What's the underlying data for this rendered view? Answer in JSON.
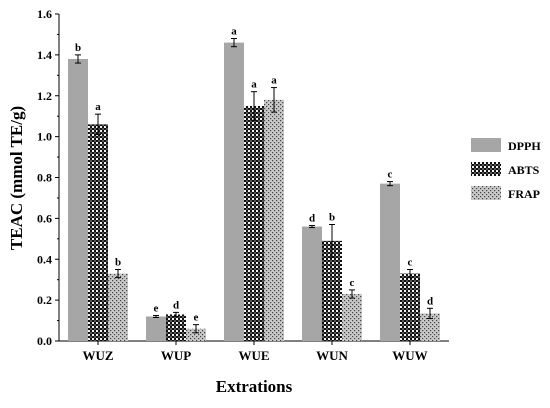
{
  "chart_data": {
    "type": "bar",
    "title": "",
    "xlabel": "Extrations",
    "ylabel": "TEAC (mmol TE/g)",
    "ylim": [
      0,
      1.6
    ],
    "yticks": [
      "0.0",
      "0.2",
      "0.4",
      "0.6",
      "0.8",
      "1.0",
      "1.2",
      "1.4",
      "1.6"
    ],
    "grid": false,
    "legend_position": "right",
    "categories": [
      "WUZ",
      "WUP",
      "WUE",
      "WUN",
      "WUW"
    ],
    "series": [
      {
        "name": "DPPH",
        "pattern": "solid",
        "color": "#a6a6a6",
        "values": [
          1.38,
          0.12,
          1.46,
          0.56,
          0.77
        ],
        "errors": [
          0.02,
          0.005,
          0.02,
          0.005,
          0.01
        ],
        "labels": [
          "b",
          "e",
          "a",
          "d",
          "c"
        ]
      },
      {
        "name": "ABTS",
        "pattern": "checker",
        "color": "#222222",
        "values": [
          1.06,
          0.13,
          1.15,
          0.49,
          0.33
        ],
        "errors": [
          0.05,
          0.01,
          0.07,
          0.08,
          0.02
        ],
        "labels": [
          "a",
          "d",
          "a",
          "b",
          "c"
        ]
      },
      {
        "name": "FRAP",
        "pattern": "dots",
        "color": "#8c8c8c",
        "values": [
          0.33,
          0.06,
          1.18,
          0.23,
          0.135
        ],
        "errors": [
          0.02,
          0.02,
          0.06,
          0.02,
          0.025
        ],
        "labels": [
          "b",
          "e",
          "a",
          "c",
          "d"
        ]
      }
    ]
  }
}
